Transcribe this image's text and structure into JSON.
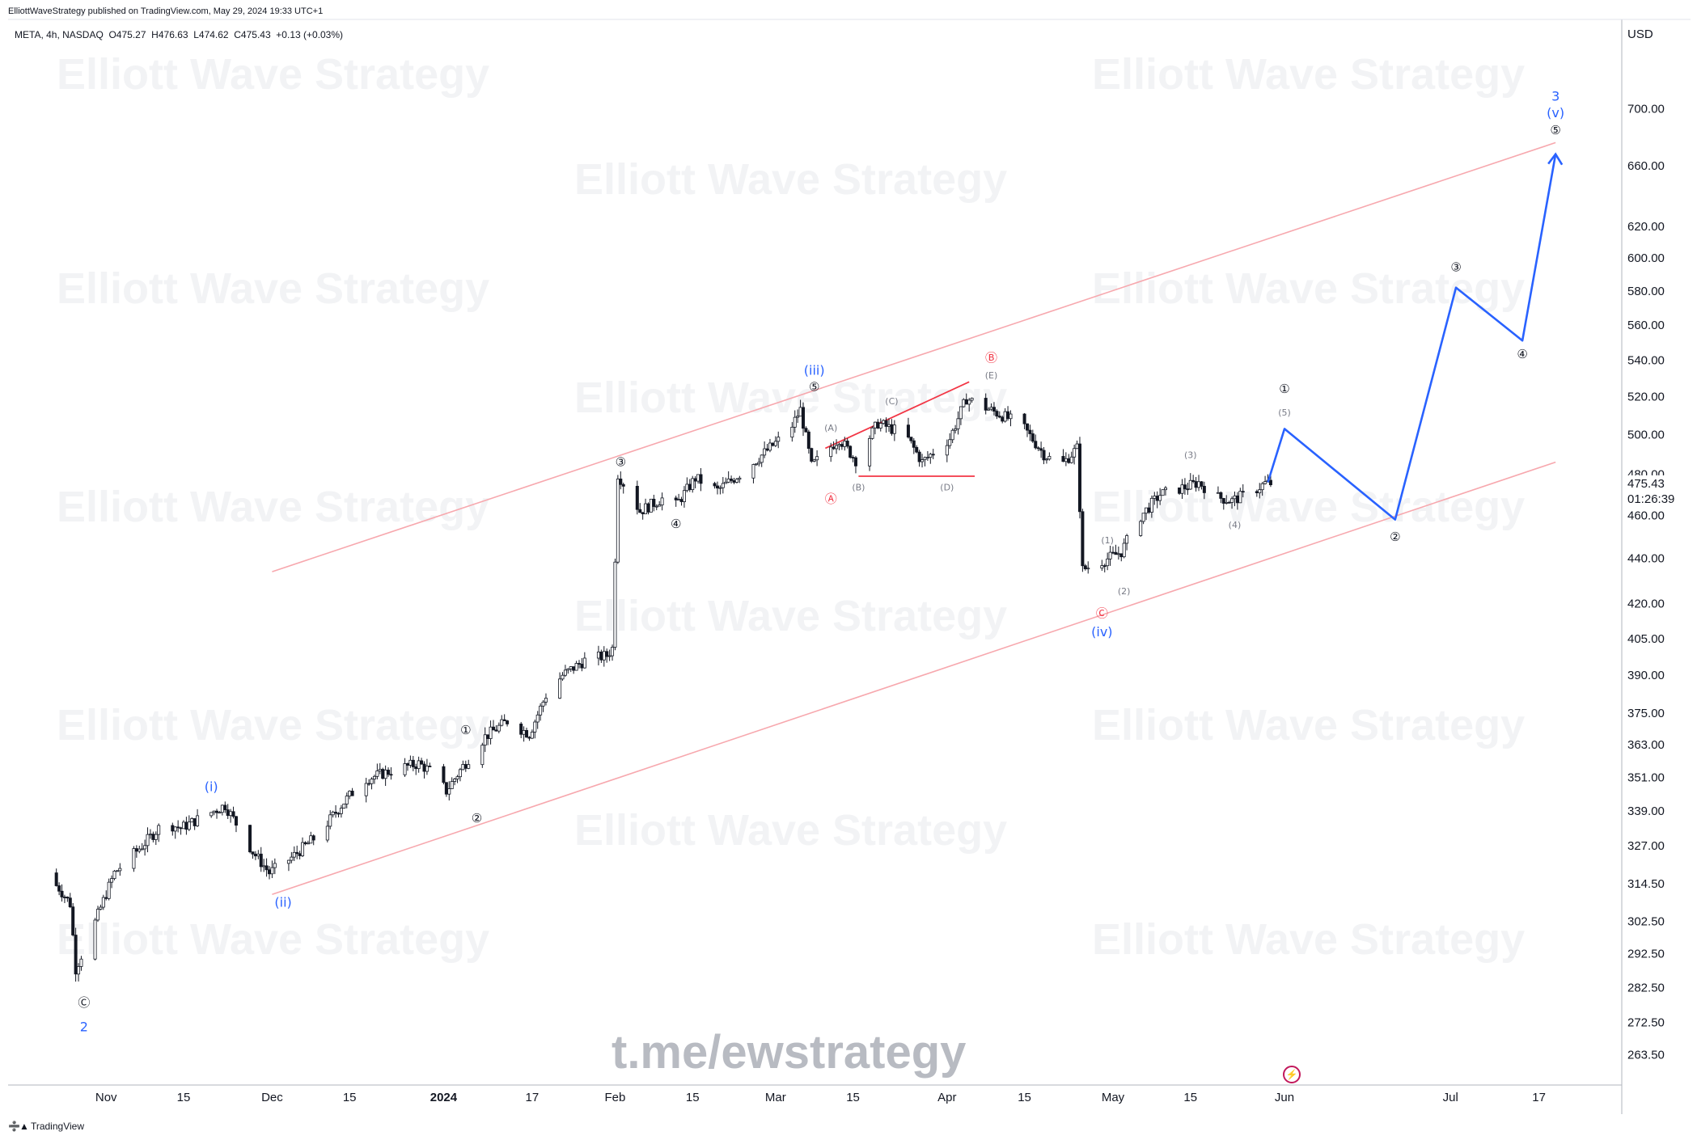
{
  "header": {
    "published_line": "ElliottWaveStrategy published on TradingView.com, May 29, 2024 19:33 UTC+1",
    "symbol_line": "META, 4h, NASDAQ  O475.27  H476.63  L474.62  C475.43  +0.13 (+0.03%)"
  },
  "price_axis": {
    "currency": "USD",
    "ticks": [
      "700.00",
      "660.00",
      "620.00",
      "600.00",
      "580.00",
      "560.00",
      "540.00",
      "520.00",
      "500.00",
      "480.00",
      "460.00",
      "440.00",
      "420.00",
      "405.00",
      "390.00",
      "375.00",
      "363.00",
      "351.00",
      "339.00",
      "327.00",
      "314.50",
      "302.50",
      "292.50",
      "282.50",
      "272.50",
      "263.50"
    ],
    "last_price": "475.43",
    "countdown": "01:26:39"
  },
  "time_axis": {
    "ticks": [
      "Nov",
      "15",
      "Dec",
      "15",
      "2024",
      "17",
      "Feb",
      "15",
      "Mar",
      "15",
      "Apr",
      "15",
      "May",
      "15",
      "Jun",
      "Jul",
      "17"
    ]
  },
  "watermarks": {
    "brand": "Elliott Wave Strategy",
    "link": "t.me/ewstrategy"
  },
  "footer": {
    "logo_text": "TradingView"
  },
  "colors": {
    "channel": "#f7a8ae",
    "projection": "#2962ff",
    "triangle": "#f23645",
    "candle": "#131722"
  },
  "chart_data": {
    "type": "candlestick",
    "symbol": "META",
    "interval": "4h",
    "exchange": "NASDAQ",
    "last": {
      "open": 475.27,
      "high": 476.63,
      "low": 474.62,
      "close": 475.43,
      "change": "+0.13 (+0.03%)"
    },
    "y_scale": "log",
    "ylim": [
      258,
      745
    ],
    "xlim": [
      "2023-10-21",
      "2024-07-21"
    ],
    "price_path": [
      [
        "2023-10-21",
        318
      ],
      [
        "2023-10-24",
        313
      ],
      [
        "2023-10-26",
        308
      ],
      [
        "2023-10-27",
        288
      ],
      [
        "2023-10-30",
        300
      ],
      [
        "2023-11-03",
        318
      ],
      [
        "2023-11-08",
        327
      ],
      [
        "2023-11-12",
        335
      ],
      [
        "2023-11-15",
        333
      ],
      [
        "2023-11-20",
        338
      ],
      [
        "2023-11-23",
        341
      ],
      [
        "2023-11-28",
        325
      ],
      [
        "2023-12-01",
        318
      ],
      [
        "2023-12-05",
        323
      ],
      [
        "2023-12-10",
        331
      ],
      [
        "2023-12-14",
        341
      ],
      [
        "2023-12-18",
        350
      ],
      [
        "2023-12-24",
        354
      ],
      [
        "2023-12-28",
        356
      ],
      [
        "2023-12-31",
        352
      ],
      [
        "2024-01-02",
        346
      ],
      [
        "2024-01-05",
        355
      ],
      [
        "2024-01-09",
        366
      ],
      [
        "2024-01-13",
        372
      ],
      [
        "2024-01-17",
        367
      ],
      [
        "2024-01-20",
        382
      ],
      [
        "2024-01-23",
        390
      ],
      [
        "2024-01-27",
        396
      ],
      [
        "2024-01-31",
        398
      ],
      [
        "2024-02-01",
        401
      ],
      [
        "2024-02-02",
        480
      ],
      [
        "2024-02-06",
        462
      ],
      [
        "2024-02-10",
        468
      ],
      [
        "2024-02-12",
        463
      ],
      [
        "2024-02-16",
        478
      ],
      [
        "2024-02-20",
        472
      ],
      [
        "2024-02-25",
        482
      ],
      [
        "2024-02-29",
        492
      ],
      [
        "2024-03-04",
        502
      ],
      [
        "2024-03-06",
        513
      ],
      [
        "2024-03-08",
        484
      ],
      [
        "2024-03-13",
        498
      ],
      [
        "2024-03-16",
        487
      ],
      [
        "2024-03-20",
        506
      ],
      [
        "2024-03-25",
        500
      ],
      [
        "2024-03-28",
        486
      ],
      [
        "2024-04-02",
        498
      ],
      [
        "2024-04-05",
        519
      ],
      [
        "2024-04-10",
        512
      ],
      [
        "2024-04-15",
        505
      ],
      [
        "2024-04-19",
        490
      ],
      [
        "2024-04-22",
        484
      ],
      [
        "2024-04-25",
        493
      ],
      [
        "2024-04-26",
        435
      ],
      [
        "2024-04-29",
        438
      ],
      [
        "2024-05-03",
        443
      ],
      [
        "2024-05-06",
        458
      ],
      [
        "2024-05-10",
        470
      ],
      [
        "2024-05-15",
        474
      ],
      [
        "2024-05-17",
        476
      ],
      [
        "2024-05-20",
        469
      ],
      [
        "2024-05-23",
        467
      ],
      [
        "2024-05-27",
        472
      ],
      [
        "2024-05-29",
        475.43
      ]
    ],
    "channel": {
      "upper": [
        [
          "2023-12-01",
          434
        ],
        [
          "2024-07-20",
          676
        ]
      ],
      "lower": [
        [
          "2023-12-01",
          311
        ],
        [
          "2024-07-20",
          486
        ]
      ]
    },
    "triangle_lines": [
      [
        [
          "2024-03-10",
          493
        ],
        [
          "2024-04-05",
          528
        ]
      ],
      [
        [
          "2024-03-16",
          479
        ],
        [
          "2024-04-06",
          479
        ]
      ]
    ],
    "projection": [
      [
        "2024-05-29",
        476
      ],
      [
        "2024-06-01",
        503
      ],
      [
        "2024-06-21",
        458
      ],
      [
        "2024-07-02",
        582
      ],
      [
        "2024-07-14",
        551
      ],
      [
        "2024-07-20",
        668
      ]
    ],
    "wave_labels": [
      {
        "text": "2",
        "date": "2023-10-28",
        "price": 270,
        "color": "blue"
      },
      {
        "text": "Ⓒ",
        "date": "2023-10-28",
        "price": 277,
        "color": "black"
      },
      {
        "text": "(i)",
        "date": "2023-11-20",
        "price": 346,
        "color": "blue"
      },
      {
        "text": "(ii)",
        "date": "2023-12-03",
        "price": 307,
        "color": "blue"
      },
      {
        "text": "①",
        "date": "2024-01-05",
        "price": 367,
        "color": "black"
      },
      {
        "text": "②",
        "date": "2024-01-07",
        "price": 335,
        "color": "black"
      },
      {
        "text": "③",
        "date": "2024-02-02",
        "price": 484,
        "color": "black"
      },
      {
        "text": "④",
        "date": "2024-02-12",
        "price": 454,
        "color": "black"
      },
      {
        "text": "⑤",
        "date": "2024-03-08",
        "price": 523,
        "color": "black"
      },
      {
        "text": "(iii)",
        "date": "2024-03-08",
        "price": 532,
        "color": "blue"
      },
      {
        "text": "Ⓐ",
        "date": "2024-03-11",
        "price": 466,
        "color": "red"
      },
      {
        "text": "(A)",
        "date": "2024-03-11",
        "price": 502,
        "color": "gray"
      },
      {
        "text": "(B)",
        "date": "2024-03-16",
        "price": 472,
        "color": "gray"
      },
      {
        "text": "(C)",
        "date": "2024-03-22",
        "price": 516,
        "color": "gray"
      },
      {
        "text": "(D)",
        "date": "2024-04-01",
        "price": 472,
        "color": "gray"
      },
      {
        "text": "Ⓑ",
        "date": "2024-04-09",
        "price": 539,
        "color": "red"
      },
      {
        "text": "(E)",
        "date": "2024-04-09",
        "price": 530,
        "color": "gray"
      },
      {
        "text": "(1)",
        "date": "2024-04-30",
        "price": 447,
        "color": "gray"
      },
      {
        "text": "(2)",
        "date": "2024-05-03",
        "price": 424,
        "color": "gray"
      },
      {
        "text": "Ⓒ",
        "date": "2024-04-29",
        "price": 414,
        "color": "red"
      },
      {
        "text": "(iv)",
        "date": "2024-04-29",
        "price": 406,
        "color": "blue"
      },
      {
        "text": "(3)",
        "date": "2024-05-15",
        "price": 488,
        "color": "gray"
      },
      {
        "text": "(4)",
        "date": "2024-05-23",
        "price": 454,
        "color": "gray"
      },
      {
        "text": "①",
        "date": "2024-06-01",
        "price": 522,
        "color": "black"
      },
      {
        "text": "(5)",
        "date": "2024-06-01",
        "price": 510,
        "color": "gray"
      },
      {
        "text": "②",
        "date": "2024-06-21",
        "price": 448,
        "color": "black"
      },
      {
        "text": "③",
        "date": "2024-07-02",
        "price": 592,
        "color": "black"
      },
      {
        "text": "④",
        "date": "2024-07-14",
        "price": 541,
        "color": "black"
      },
      {
        "text": "⑤",
        "date": "2024-07-20",
        "price": 682,
        "color": "black"
      },
      {
        "text": "(v)",
        "date": "2024-07-20",
        "price": 694,
        "color": "blue"
      },
      {
        "text": "3",
        "date": "2024-07-20",
        "price": 706,
        "color": "blue"
      }
    ]
  }
}
